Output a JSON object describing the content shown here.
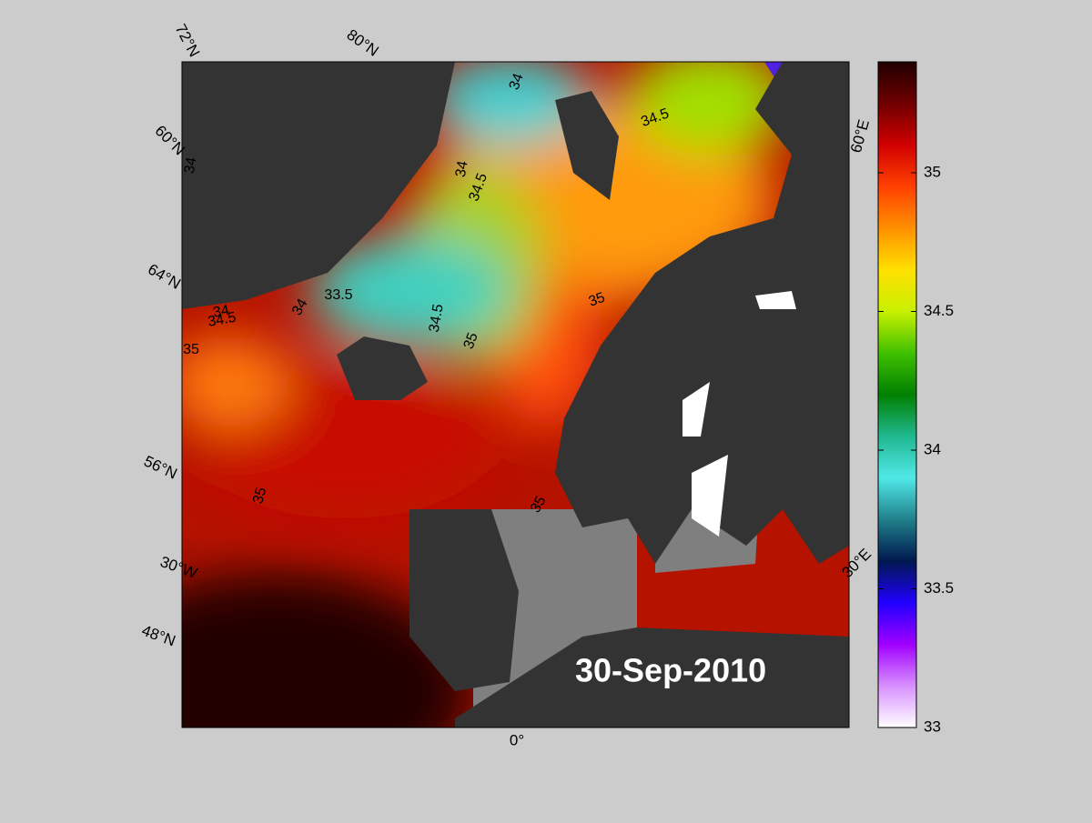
{
  "map": {
    "date": "30-Sep-2010",
    "graticule_labels": [
      "72°N",
      "80°N",
      "60°N",
      "64°N",
      "56°N",
      "30°W",
      "48°N",
      "0°",
      "30°E",
      "60°E"
    ],
    "contour_labels": [
      34,
      34.5,
      34,
      34,
      34.5,
      33.5,
      34,
      34,
      34.5,
      35,
      34.5,
      35,
      35,
      35,
      35
    ]
  },
  "colorbar": {
    "lim": [
      33,
      35.4
    ],
    "ticks": [
      33,
      33.5,
      34,
      34.5,
      35
    ],
    "colors": [
      "#ffffff",
      "#d890ff",
      "#a000ff",
      "#2000ff",
      "#001850",
      "#20808a",
      "#50e8e8",
      "#20b890",
      "#008000",
      "#40c000",
      "#c8f000",
      "#ffe000",
      "#ff9000",
      "#ff4000",
      "#d00000",
      "#700000",
      "#200000"
    ]
  }
}
